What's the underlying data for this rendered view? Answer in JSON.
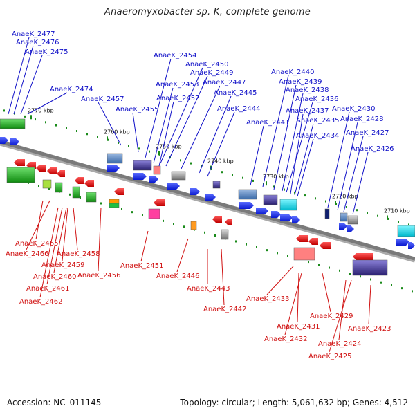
{
  "title": "Anaeromyxobacter sp. K, complete genome",
  "footer": {
    "accession": "Accession: NC_011145",
    "summary": "Topology: circular; Length: 5,061,632 bp; Genes: 4,512"
  },
  "colors": {
    "backbone": "#7a7a7a",
    "forward_label": "#1010c8",
    "reverse_label": "#d01010",
    "forward_arrow": "#1030e0",
    "reverse_arrow": "#e01010",
    "tick": "#1a8a1a"
  },
  "ticks": [
    "2770 kbp",
    "2760 kbp",
    "2750 kbp",
    "2740 kbp",
    "2730 kbp",
    "2720 kbp",
    "2710 kbp"
  ],
  "forward_genes": [
    "AnaeK_2477",
    "AnaeK_2476",
    "AnaeK_2475",
    "AnaeK_2474",
    "AnaeK_2457",
    "AnaeK_2455",
    "AnaeK_2454",
    "AnaeK_2450",
    "AnaeK_2449",
    "AnaeK_2453",
    "AnaeK_2447",
    "AnaeK_2452",
    "AnaeK_2445",
    "AnaeK_2444",
    "AnaeK_2441",
    "AnaeK_2440",
    "AnaeK_2439",
    "AnaeK_2438",
    "AnaeK_2436",
    "AnaeK_2437",
    "AnaeK_2435",
    "AnaeK_2434",
    "AnaeK_2430",
    "AnaeK_2428",
    "AnaeK_2427",
    "AnaeK_2426"
  ],
  "reverse_genes": [
    "AnaeK_2465",
    "AnaeK_2466",
    "AnaeK_2458",
    "AnaeK_2459",
    "AnaeK_2460",
    "AnaeK_2461",
    "AnaeK_2462",
    "AnaeK_2456",
    "AnaeK_2451",
    "AnaeK_2446",
    "AnaeK_2443",
    "AnaeK_2442",
    "AnaeK_2433",
    "AnaeK_2429",
    "AnaeK_2431",
    "AnaeK_2432",
    "AnaeK_2423",
    "AnaeK_2424",
    "AnaeK_2425"
  ]
}
